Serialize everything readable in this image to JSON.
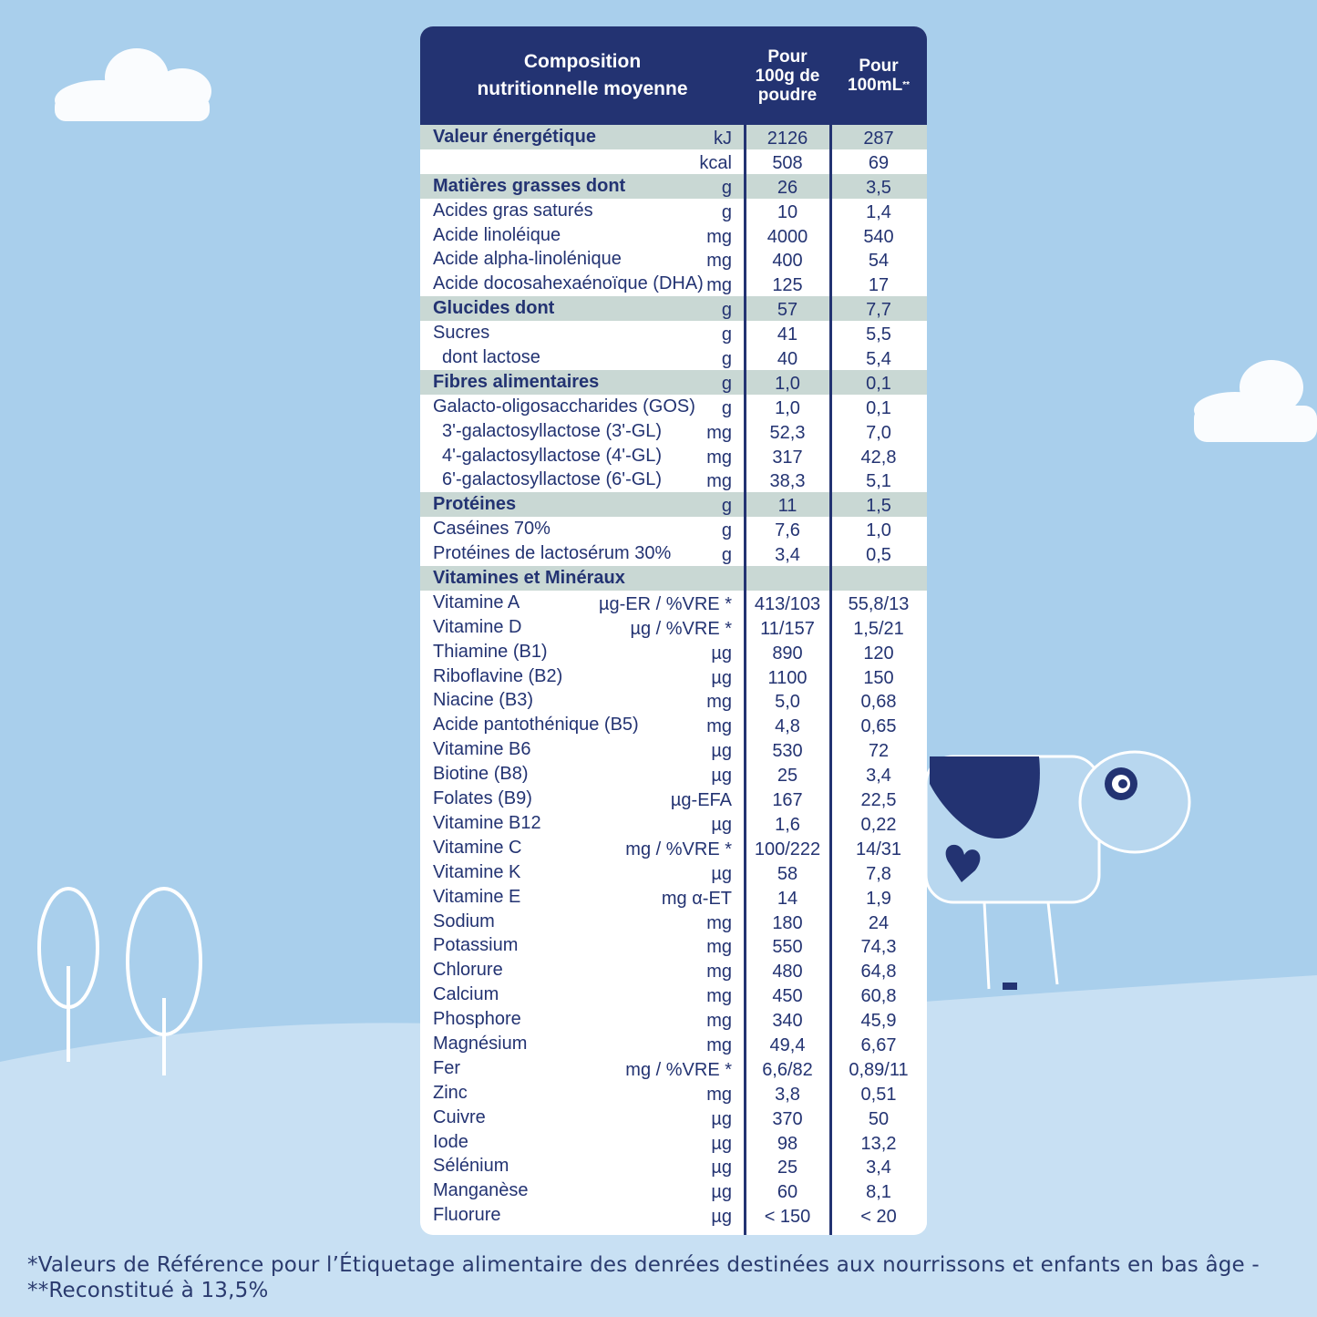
{
  "colors": {
    "background": "#a9cfec",
    "header": "#233372",
    "highlight_row": "#c9d8d4",
    "text": "#233372"
  },
  "table": {
    "header": {
      "title": "Composition nutritionnelle moyenne",
      "col1": "Pour 100g de poudre",
      "col2": "Pour 100mL",
      "col2_mark": "**"
    },
    "rows": [
      {
        "name": "Valeur énergétique",
        "unit": "kJ",
        "v1": "2126",
        "v2": "287",
        "bold": true,
        "hl": true
      },
      {
        "name": "",
        "unit": "kcal",
        "v1": "508",
        "v2": "69"
      },
      {
        "name": "Matières grasses dont",
        "unit": "g",
        "v1": "26",
        "v2": "3,5",
        "bold": true,
        "hl": true
      },
      {
        "name": "Acides gras saturés",
        "unit": "g",
        "v1": "10",
        "v2": "1,4"
      },
      {
        "name": "Acide linoléique",
        "unit": "mg",
        "v1": "4000",
        "v2": "540"
      },
      {
        "name": "Acide alpha-linolénique",
        "unit": "mg",
        "v1": "400",
        "v2": "54"
      },
      {
        "name": "Acide docosahexaénoïque (DHA)",
        "unit": "mg",
        "v1": "125",
        "v2": "17"
      },
      {
        "name": "Glucides dont",
        "unit": "g",
        "v1": "57",
        "v2": "7,7",
        "bold": true,
        "hl": true
      },
      {
        "name": "Sucres",
        "unit": "g",
        "v1": "41",
        "v2": "5,5"
      },
      {
        "name": "dont lactose",
        "unit": "g",
        "v1": "40",
        "v2": "5,4",
        "indent": true
      },
      {
        "name": "Fibres alimentaires",
        "unit": "g",
        "v1": "1,0",
        "v2": "0,1",
        "bold": true,
        "hl": true
      },
      {
        "name": "Galacto-oligosaccharides (GOS)",
        "unit": "g",
        "v1": "1,0",
        "v2": "0,1"
      },
      {
        "name": "3'-galactosyllactose (3'-GL)",
        "unit": "mg",
        "v1": "52,3",
        "v2": "7,0",
        "indent": true
      },
      {
        "name": "4'-galactosyllactose (4'-GL)",
        "unit": "mg",
        "v1": "317",
        "v2": "42,8",
        "indent": true
      },
      {
        "name": "6'-galactosyllactose (6'-GL)",
        "unit": "mg",
        "v1": "38,3",
        "v2": "5,1",
        "indent": true
      },
      {
        "name": "Protéines",
        "unit": "g",
        "v1": "11",
        "v2": "1,5",
        "bold": true,
        "hl": true
      },
      {
        "name": "Caséines 70%",
        "unit": "g",
        "v1": "7,6",
        "v2": "1,0"
      },
      {
        "name": "Protéines de lactosérum 30%",
        "unit": "g",
        "v1": "3,4",
        "v2": "0,5"
      },
      {
        "name": "Vitamines et Minéraux",
        "unit": "",
        "v1": "",
        "v2": "",
        "bold": true,
        "hl": true
      },
      {
        "name": "Vitamine A",
        "unit": "µg-ER / %VRE *",
        "v1": "413/103",
        "v2": "55,8/13"
      },
      {
        "name": "Vitamine D",
        "unit": "µg / %VRE *",
        "v1": "11/157",
        "v2": "1,5/21"
      },
      {
        "name": "Thiamine (B1)",
        "unit": "µg",
        "v1": "890",
        "v2": "120"
      },
      {
        "name": "Riboflavine (B2)",
        "unit": "µg",
        "v1": "1100",
        "v2": "150"
      },
      {
        "name": "Niacine (B3)",
        "unit": "mg",
        "v1": "5,0",
        "v2": "0,68"
      },
      {
        "name": "Acide pantothénique (B5)",
        "unit": "mg",
        "v1": "4,8",
        "v2": "0,65"
      },
      {
        "name": "Vitamine B6",
        "unit": "µg",
        "v1": "530",
        "v2": "72"
      },
      {
        "name": "Biotine (B8)",
        "unit": "µg",
        "v1": "25",
        "v2": "3,4"
      },
      {
        "name": "Folates (B9)",
        "unit": "µg-EFA",
        "v1": "167",
        "v2": "22,5"
      },
      {
        "name": "Vitamine B12",
        "unit": "µg",
        "v1": "1,6",
        "v2": "0,22"
      },
      {
        "name": "Vitamine C",
        "unit": "mg / %VRE *",
        "v1": "100/222",
        "v2": "14/31"
      },
      {
        "name": "Vitamine K",
        "unit": "µg",
        "v1": "58",
        "v2": "7,8"
      },
      {
        "name": "Vitamine E",
        "unit": "mg α-ET",
        "v1": "14",
        "v2": "1,9"
      },
      {
        "name": "Sodium",
        "unit": "mg",
        "v1": "180",
        "v2": "24"
      },
      {
        "name": "Potassium",
        "unit": "mg",
        "v1": "550",
        "v2": "74,3"
      },
      {
        "name": "Chlorure",
        "unit": "mg",
        "v1": "480",
        "v2": "64,8"
      },
      {
        "name": "Calcium",
        "unit": "mg",
        "v1": "450",
        "v2": "60,8"
      },
      {
        "name": "Phosphore",
        "unit": "mg",
        "v1": "340",
        "v2": "45,9"
      },
      {
        "name": "Magnésium",
        "unit": "mg",
        "v1": "49,4",
        "v2": "6,67"
      },
      {
        "name": "Fer",
        "unit": "mg / %VRE *",
        "v1": "6,6/82",
        "v2": "0,89/11"
      },
      {
        "name": "Zinc",
        "unit": "mg",
        "v1": "3,8",
        "v2": "0,51"
      },
      {
        "name": "Cuivre",
        "unit": "µg",
        "v1": "370",
        "v2": "50"
      },
      {
        "name": "Iode",
        "unit": "µg",
        "v1": "98",
        "v2": "13,2"
      },
      {
        "name": "Sélénium",
        "unit": "µg",
        "v1": "25",
        "v2": "3,4"
      },
      {
        "name": "Manganèse",
        "unit": "µg",
        "v1": "60",
        "v2": "8,1"
      },
      {
        "name": "Fluorure",
        "unit": "µg",
        "v1": "< 150",
        "v2": "< 20"
      }
    ]
  },
  "footnote": {
    "line1": "*Valeurs de Référence pour l’Étiquetage alimentaire des denrées destinées aux nourrissons et enfants en bas âge -",
    "line2": "**Reconstitué à 13,5%"
  }
}
